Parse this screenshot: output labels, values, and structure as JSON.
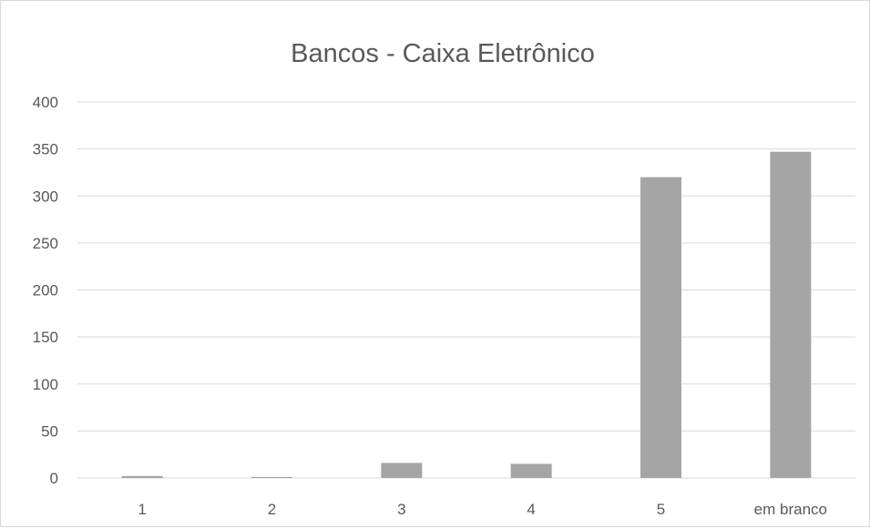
{
  "chart_data": {
    "type": "bar",
    "title": "Bancos - Caixa Eletrônico",
    "categories": [
      "1",
      "2",
      "3",
      "4",
      "5",
      "em branco"
    ],
    "values": [
      2,
      1,
      16,
      15,
      320,
      347
    ],
    "ylim": [
      0,
      400
    ],
    "yticks": [
      0,
      50,
      100,
      150,
      200,
      250,
      300,
      350,
      400
    ],
    "xlabel": "",
    "ylabel": "",
    "grid": true,
    "legend": "none",
    "bar_color": "#a5a5a5",
    "grid_color": "#d9d9d9"
  }
}
